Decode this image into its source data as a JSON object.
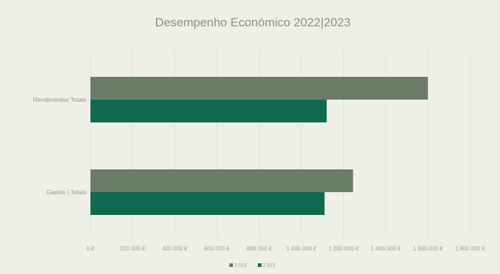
{
  "chart_data": {
    "type": "bar",
    "orientation": "horizontal",
    "title": "Desempenho Económico 2022|2023",
    "categories": [
      "Rendimentos Totais",
      "Gastos | Totais"
    ],
    "series": [
      {
        "name": "2 023",
        "color": "#6a7b67",
        "values": [
          1600000,
          1245000
        ]
      },
      {
        "name": "2 022",
        "color": "#0e6b50",
        "values": [
          1120000,
          1110000
        ]
      }
    ],
    "xlim": [
      0,
      1800000
    ],
    "xticks": [
      "0 €",
      "200 000 €",
      "400 000 €",
      "600 000 €",
      "800 000 €",
      "1 000 000 €",
      "1 200 000 €",
      "1 400 000 €",
      "1 600 000 €",
      "1 800 000 €"
    ],
    "grid": true,
    "legend_position": "bottom"
  }
}
